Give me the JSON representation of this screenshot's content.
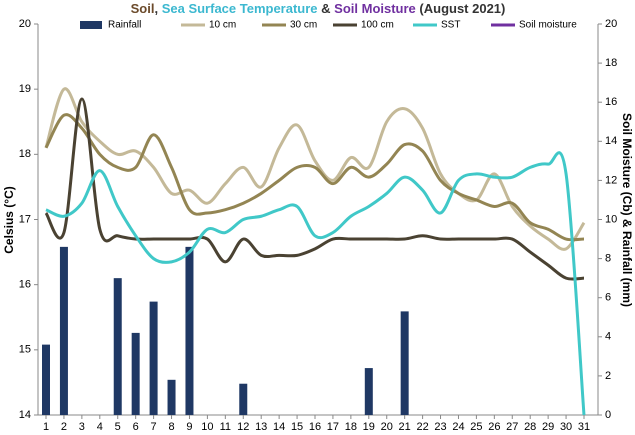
{
  "chart_data": {
    "type": "combo",
    "title_parts": [
      {
        "text": "Soil",
        "color": "#6b4a2a"
      },
      {
        "text": ", ",
        "color": "#333333"
      },
      {
        "text": "Sea Surface Temperature",
        "color": "#3cb8d0"
      },
      {
        "text": " & ",
        "color": "#333333"
      },
      {
        "text": "Soil Moisture",
        "color": "#7030a0"
      },
      {
        "text": " (August 2021)",
        "color": "#333333"
      }
    ],
    "y_label": "Celsius (°C)",
    "y2_label": "Soil Moisture (Cb) & Rainfall (mm)",
    "y2_color": "#8b1a8b",
    "categories": [
      "1",
      "2",
      "3",
      "4",
      "5",
      "6",
      "7",
      "8",
      "9",
      "10",
      "11",
      "12",
      "13",
      "14",
      "15",
      "16",
      "17",
      "18",
      "19",
      "20",
      "21",
      "22",
      "23",
      "24",
      "25",
      "26",
      "27",
      "28",
      "29",
      "30",
      "31"
    ],
    "ylim": [
      14,
      20
    ],
    "yticks": [
      14,
      15,
      16,
      17,
      18,
      19,
      20
    ],
    "y2lim": [
      0,
      20
    ],
    "y2ticks": [
      0,
      2,
      4,
      6,
      8,
      10,
      12,
      14,
      16,
      18,
      20
    ],
    "series": [
      {
        "name": "Rainfall",
        "kind": "bar",
        "axis": "y2",
        "color": "#1f3864",
        "values": [
          3.6,
          8.6,
          null,
          null,
          7.0,
          4.2,
          5.8,
          1.8,
          8.6,
          null,
          null,
          1.6,
          null,
          null,
          null,
          null,
          null,
          null,
          2.4,
          null,
          5.3,
          null,
          null,
          null,
          null,
          null,
          null,
          null,
          null,
          null,
          null
        ]
      },
      {
        "name": "10 cm",
        "kind": "line",
        "color": "#c4b998",
        "values": [
          18.1,
          19.0,
          18.5,
          18.2,
          18.0,
          18.05,
          17.8,
          17.4,
          17.45,
          17.25,
          17.55,
          17.8,
          17.5,
          18.1,
          18.45,
          17.9,
          17.6,
          17.95,
          17.8,
          18.5,
          18.7,
          18.4,
          17.7,
          17.4,
          17.3,
          17.7,
          17.2,
          16.9,
          16.7,
          16.55,
          16.95
        ]
      },
      {
        "name": "30 cm",
        "kind": "line",
        "color": "#938553",
        "values": [
          18.1,
          18.6,
          18.4,
          18.0,
          17.8,
          17.8,
          18.3,
          17.8,
          17.15,
          17.1,
          17.15,
          17.25,
          17.4,
          17.6,
          17.8,
          17.8,
          17.55,
          17.8,
          17.65,
          17.85,
          18.15,
          18.05,
          17.6,
          17.4,
          17.3,
          17.2,
          17.25,
          16.95,
          16.85,
          16.7,
          16.7
        ]
      },
      {
        "name": "100 cm",
        "kind": "line",
        "color": "#4a4232",
        "values": [
          17.1,
          16.8,
          18.85,
          16.85,
          16.75,
          16.7,
          16.7,
          16.7,
          16.7,
          16.7,
          16.35,
          16.7,
          16.45,
          16.45,
          16.45,
          16.55,
          16.7,
          16.7,
          16.7,
          16.7,
          16.7,
          16.75,
          16.7,
          16.7,
          16.7,
          16.7,
          16.7,
          16.5,
          16.3,
          16.1,
          16.1
        ]
      },
      {
        "name": "SST",
        "kind": "line",
        "color": "#40c8c8",
        "values": [
          17.15,
          17.05,
          17.25,
          17.75,
          17.2,
          16.75,
          16.4,
          16.35,
          16.5,
          16.85,
          16.8,
          17.0,
          17.05,
          17.15,
          17.2,
          16.75,
          16.8,
          17.05,
          17.2,
          17.4,
          17.65,
          17.45,
          17.1,
          17.6,
          17.7,
          17.65,
          17.65,
          17.8,
          17.85,
          17.7,
          14.0
        ]
      },
      {
        "name": "Soil moisture",
        "kind": "line",
        "axis": "y2",
        "color": "#7030a0",
        "values": [
          null,
          null,
          null,
          null,
          null,
          null,
          null,
          null,
          null,
          null,
          null,
          null,
          null,
          null,
          null,
          null,
          null,
          null,
          null,
          null,
          null,
          null,
          null,
          null,
          null,
          null,
          null,
          null,
          null,
          null,
          null
        ]
      }
    ]
  }
}
